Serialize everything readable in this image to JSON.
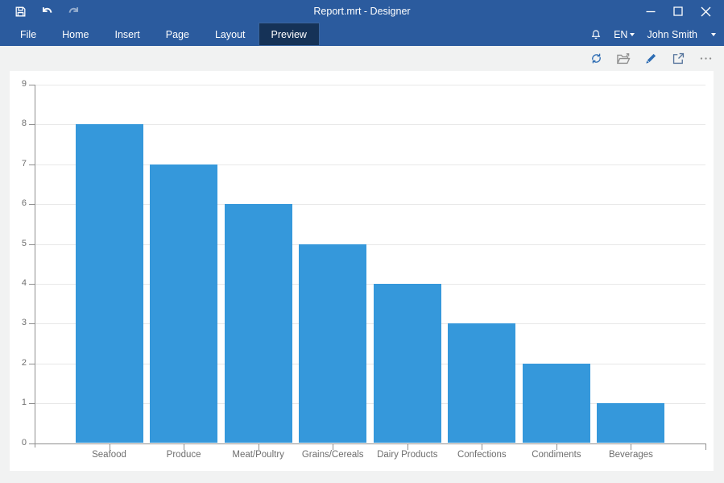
{
  "titlebar": {
    "title": "Report.mrt - Designer",
    "left_icons": [
      "save-icon",
      "undo-icon",
      "redo-icon"
    ],
    "window_controls": [
      "minimize",
      "maximize",
      "close"
    ]
  },
  "ribbon": {
    "tabs": [
      {
        "label": "File",
        "active": false
      },
      {
        "label": "Home",
        "active": false
      },
      {
        "label": "Insert",
        "active": false
      },
      {
        "label": "Page",
        "active": false
      },
      {
        "label": "Layout",
        "active": false
      },
      {
        "label": "Preview",
        "active": true
      }
    ],
    "language": "EN",
    "user": "John Smith",
    "icons": [
      "bell-icon"
    ]
  },
  "toolbar": {
    "icons": [
      "refresh-icon",
      "open-icon",
      "edit-icon",
      "open-in-new-icon",
      "more-icon"
    ]
  },
  "chart_data": {
    "type": "bar",
    "title": "",
    "xlabel": "",
    "ylabel": "",
    "categories": [
      "Seafood",
      "Produce",
      "Meat/Poultry",
      "Grains/Cereals",
      "Dairy Products",
      "Confections",
      "Condiments",
      "Beverages"
    ],
    "values": [
      8,
      7,
      6,
      5,
      4,
      3,
      2,
      1
    ],
    "ylim": [
      0,
      9
    ],
    "yticks": [
      0,
      1,
      2,
      3,
      4,
      5,
      6,
      7,
      8,
      9
    ],
    "grid": true,
    "legend": "none",
    "bar_color": "#3598db"
  },
  "colors": {
    "titlebar": "#2b5b9e",
    "active_tab": "#153257",
    "accent_icon": "#2e6db4",
    "gray_icon": "#8f8f8f",
    "axis": "#8f8f8f",
    "gridline": "#e8e8e8",
    "bar": "#3598db",
    "panel_bg": "#ffffff",
    "workspace_bg": "#f1f2f2"
  }
}
